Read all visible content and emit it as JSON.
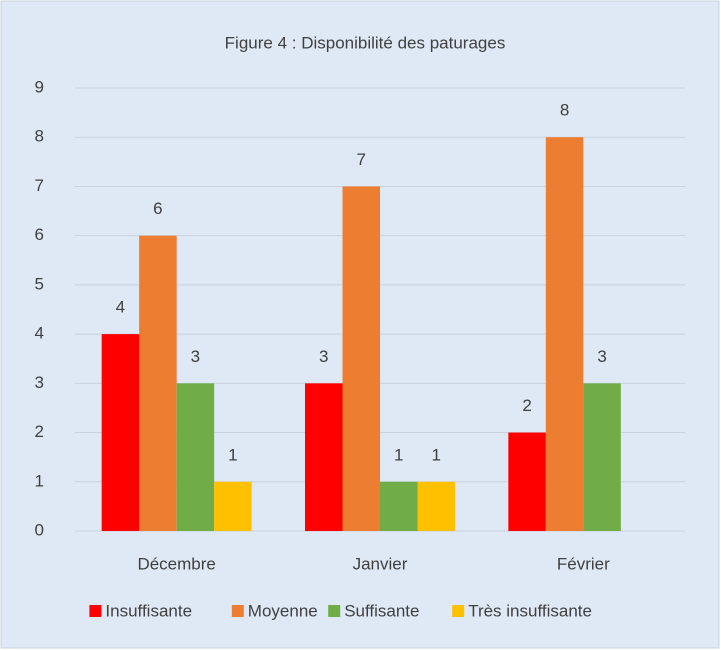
{
  "chart_data": {
    "type": "bar",
    "title": "Figure 4 : Disponibilité  des paturages",
    "categories": [
      "Décembre",
      "Janvier",
      "Février"
    ],
    "series": [
      {
        "name": "Insuffisante",
        "color": "#ff0000",
        "values": [
          4,
          3,
          2
        ]
      },
      {
        "name": "Moyenne",
        "color": "#ed7d31",
        "values": [
          6,
          7,
          8
        ]
      },
      {
        "name": "Suffisante",
        "color": "#70ad47",
        "values": [
          3,
          1,
          3
        ]
      },
      {
        "name": "Très insuffisante",
        "color": "#ffc000",
        "values": [
          1,
          1,
          null
        ]
      }
    ],
    "ylim": [
      0,
      9
    ],
    "yticks": [
      0,
      1,
      2,
      3,
      4,
      5,
      6,
      7,
      8,
      9
    ],
    "grid": true,
    "legend": "bottom"
  }
}
